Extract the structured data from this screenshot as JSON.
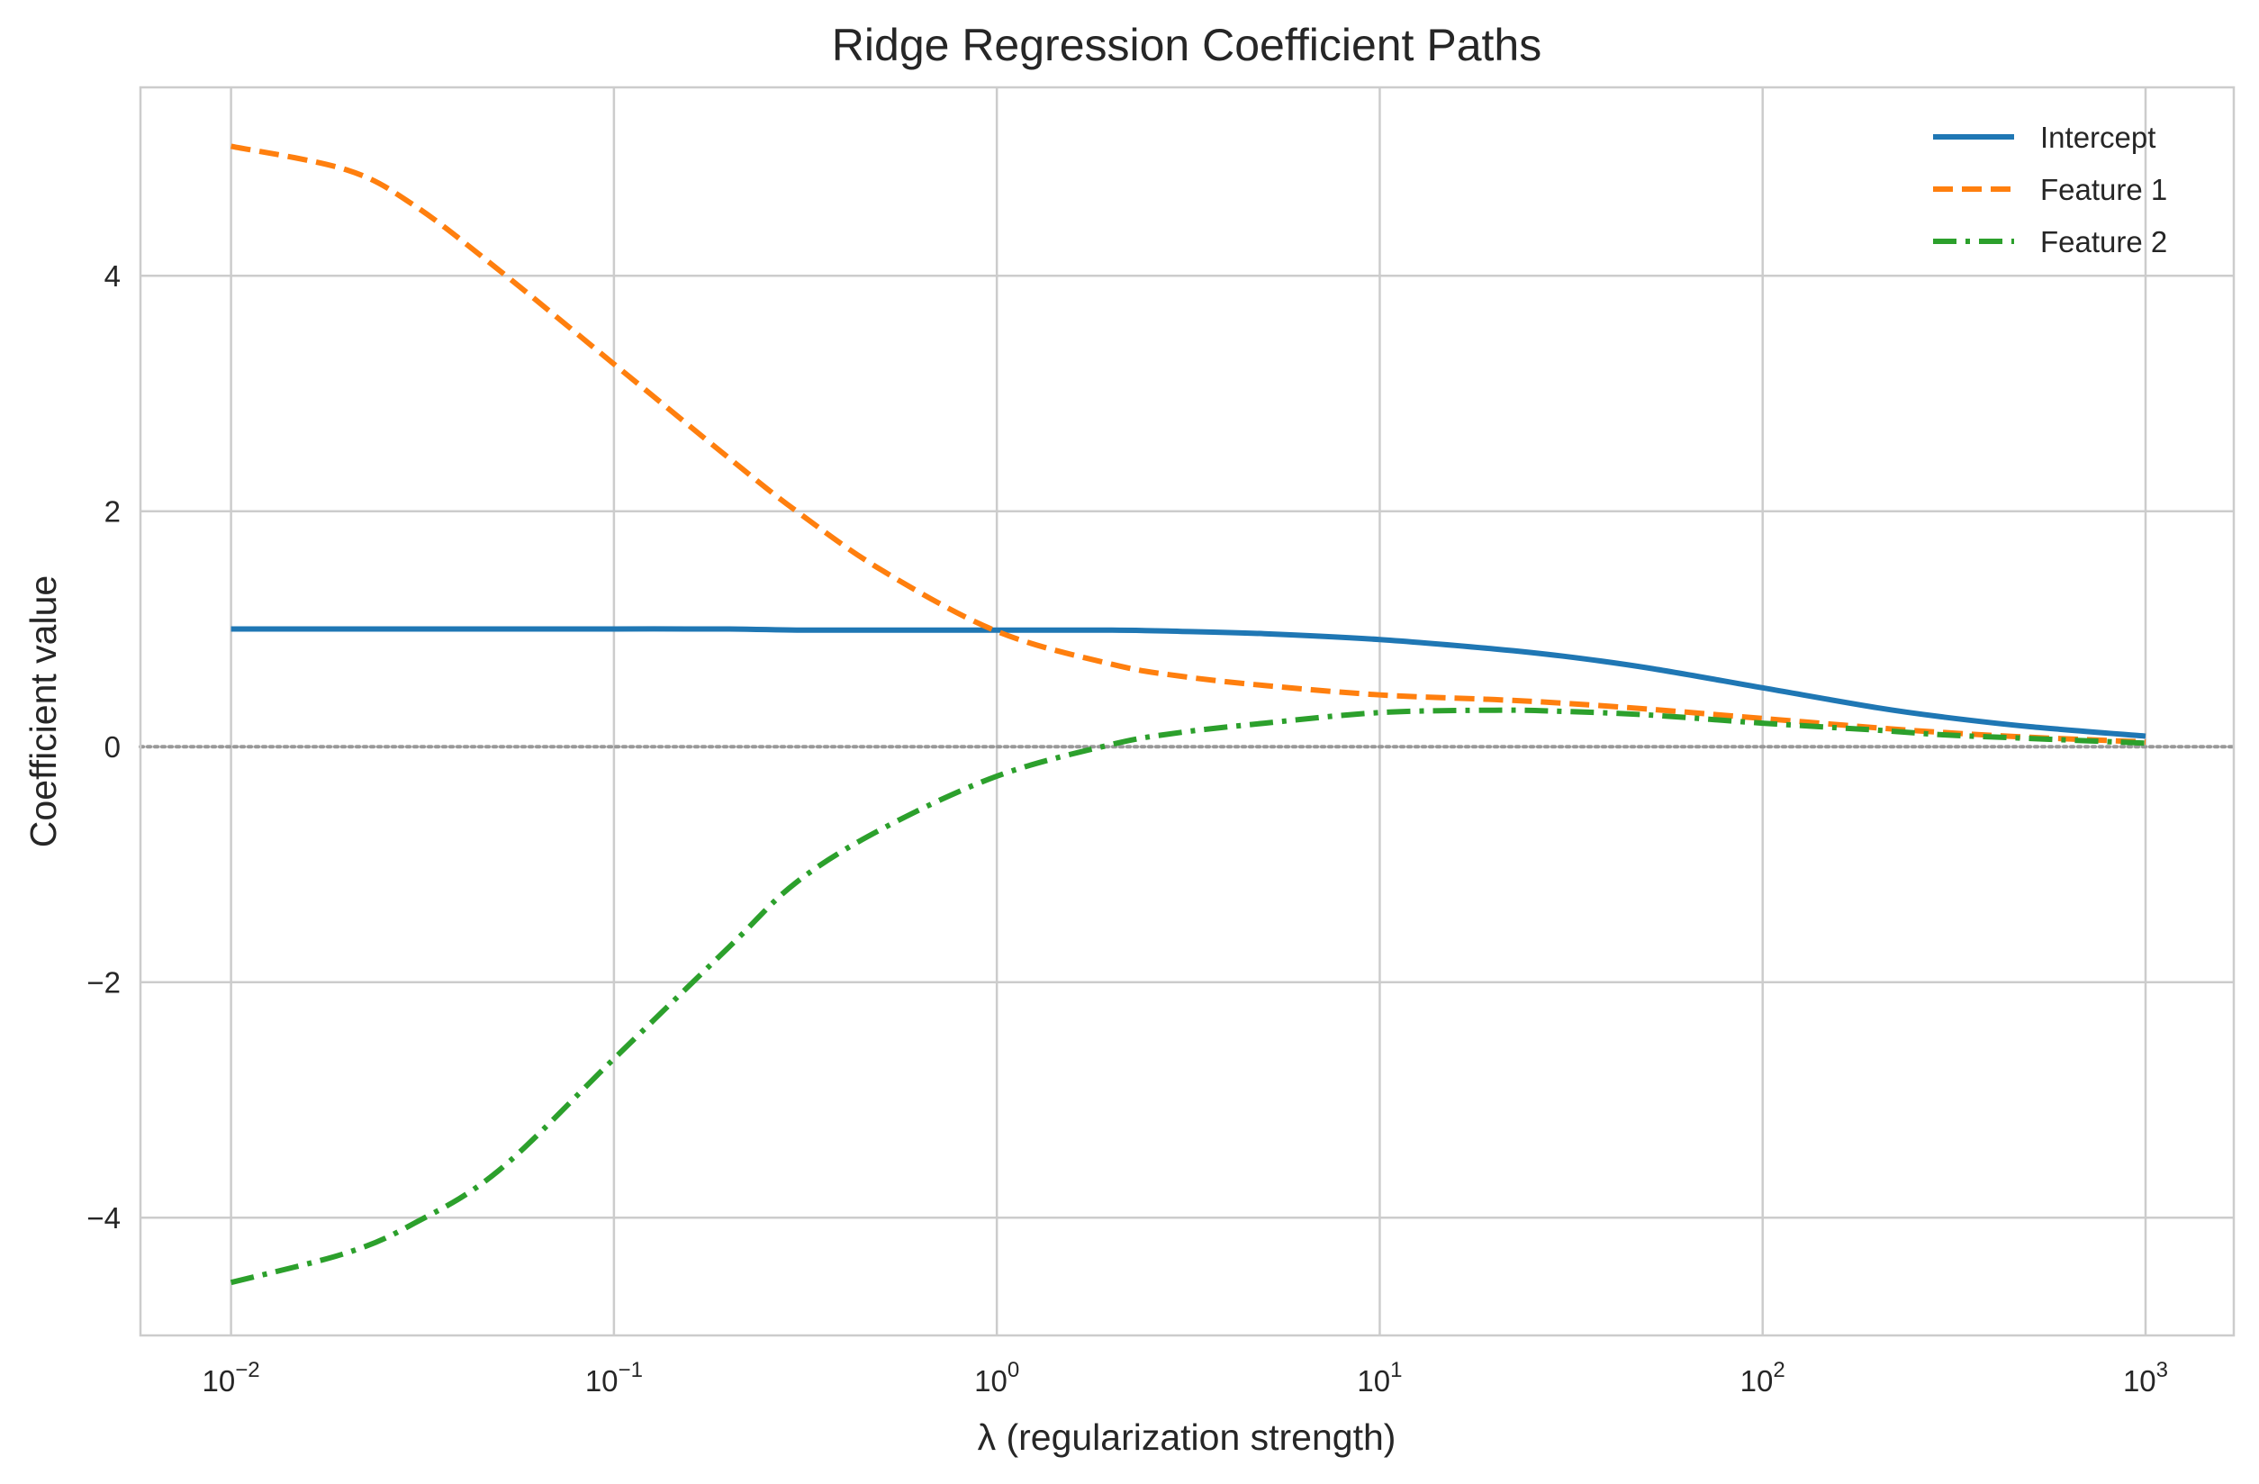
{
  "chart_data": {
    "type": "line",
    "title": "Ridge Regression Coefficient Paths",
    "xlabel": "λ (regularization strength)",
    "ylabel": "Coefficient value",
    "xscale": "log",
    "xlim": [
      0.0058,
      1700
    ],
    "ylim": [
      -5.0,
      5.6
    ],
    "x_ticks": [
      {
        "base": "10",
        "exp": "−2",
        "value": 0.01
      },
      {
        "base": "10",
        "exp": "−1",
        "value": 0.1
      },
      {
        "base": "10",
        "exp": "0",
        "value": 1
      },
      {
        "base": "10",
        "exp": "1",
        "value": 10
      },
      {
        "base": "10",
        "exp": "2",
        "value": 100
      },
      {
        "base": "10",
        "exp": "3",
        "value": 1000
      }
    ],
    "y_ticks": [
      {
        "label": "−4",
        "value": -4
      },
      {
        "label": "−2",
        "value": -2
      },
      {
        "label": "0",
        "value": 0
      },
      {
        "label": "2",
        "value": 2
      },
      {
        "label": "4",
        "value": 4
      }
    ],
    "grid": true,
    "legend_position": "top-right",
    "reference_line": {
      "y": 0,
      "style": "dotted",
      "color": "#999999"
    },
    "x": [
      0.01,
      0.02,
      0.03,
      0.05,
      0.1,
      0.2,
      0.3,
      0.5,
      1,
      2,
      3,
      5,
      10,
      20,
      30,
      50,
      100,
      200,
      300,
      500,
      1000
    ],
    "series": [
      {
        "name": "Intercept",
        "color": "#1f77b4",
        "dash": "solid",
        "values": [
          1.0,
          1.0,
          1.0,
          1.0,
          1.0,
          1.0,
          0.99,
          0.99,
          0.99,
          0.99,
          0.98,
          0.96,
          0.91,
          0.83,
          0.77,
          0.67,
          0.5,
          0.33,
          0.25,
          0.17,
          0.09
        ]
      },
      {
        "name": "Feature 1",
        "color": "#ff7f0e",
        "dash": "dashed",
        "values": [
          5.1,
          4.9,
          4.6,
          4.05,
          3.25,
          2.45,
          2.0,
          1.5,
          0.98,
          0.7,
          0.6,
          0.52,
          0.44,
          0.4,
          0.37,
          0.32,
          0.24,
          0.16,
          0.12,
          0.08,
          0.04
        ]
      },
      {
        "name": "Feature 2",
        "color": "#2ca02c",
        "dash": "dashdot",
        "values": [
          -4.55,
          -4.3,
          -4.05,
          -3.6,
          -2.65,
          -1.7,
          -1.15,
          -0.7,
          -0.25,
          0.02,
          0.12,
          0.2,
          0.29,
          0.31,
          0.3,
          0.27,
          0.2,
          0.14,
          0.1,
          0.07,
          0.03
        ]
      }
    ]
  }
}
